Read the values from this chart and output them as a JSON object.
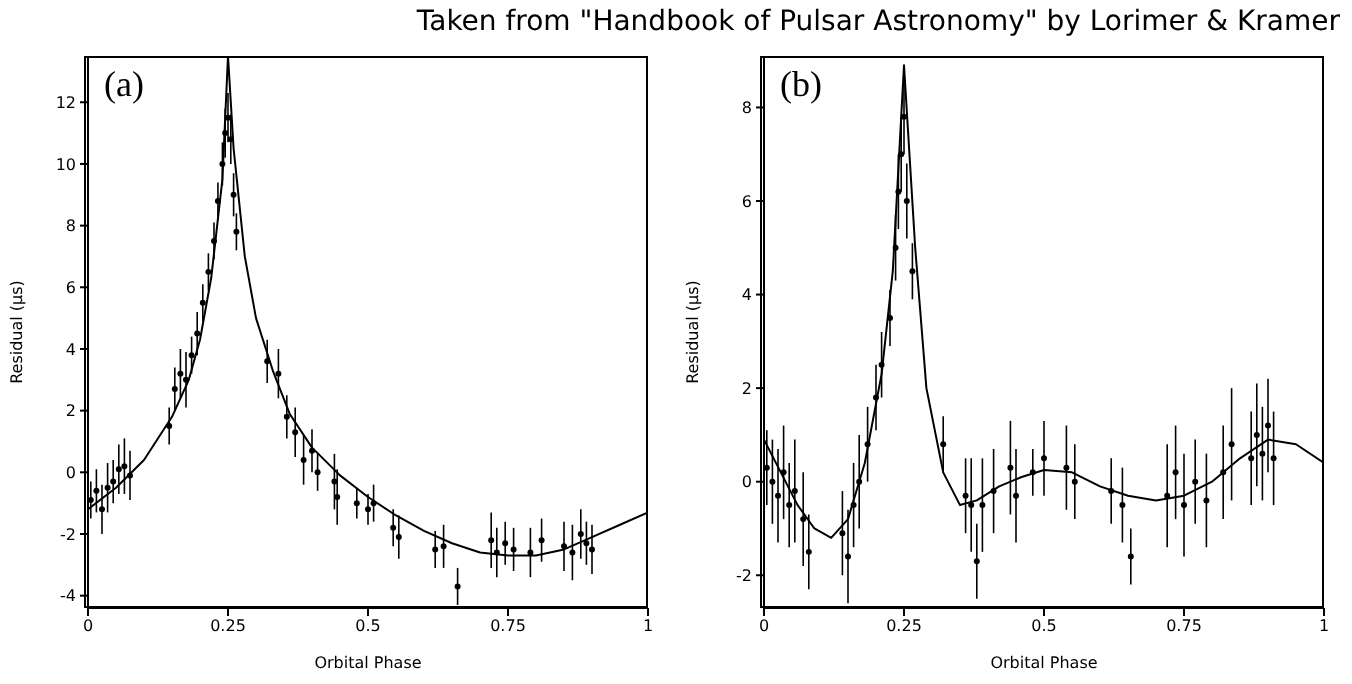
{
  "chart_data": [
    {
      "type": "scatter",
      "title": "(a)",
      "xlabel": "Orbital Phase",
      "ylabel": "Residual (μs)",
      "annotations": [
        "Taken from \"Handbook of Pulsar Astronomy\" by Lorimer & Kramer"
      ],
      "xlim": [
        0,
        1
      ],
      "xticks": [
        0,
        0.25,
        0.5,
        0.75,
        1
      ],
      "ylim": [
        -4.4,
        13.5
      ],
      "yticks": [
        -4,
        -2,
        0,
        2,
        4,
        6,
        8,
        10,
        12
      ],
      "grid": false,
      "marker": "circle",
      "series": [
        {
          "type": "scatter",
          "color": "#000000",
          "x": [
            0.005,
            0.015,
            0.025,
            0.035,
            0.045,
            0.055,
            0.065,
            0.075,
            0.145,
            0.155,
            0.165,
            0.175,
            0.185,
            0.195,
            0.205,
            0.215,
            0.225,
            0.232,
            0.24,
            0.245,
            0.25,
            0.255,
            0.26,
            0.265,
            0.32,
            0.34,
            0.355,
            0.37,
            0.385,
            0.4,
            0.41,
            0.44,
            0.445,
            0.48,
            0.5,
            0.51,
            0.545,
            0.555,
            0.62,
            0.635,
            0.66,
            0.72,
            0.73,
            0.745,
            0.76,
            0.79,
            0.81,
            0.85,
            0.865,
            0.88,
            0.89,
            0.9
          ],
          "values": [
            -0.9,
            -0.6,
            -1.2,
            -0.5,
            -0.3,
            0.1,
            0.2,
            -0.1,
            1.5,
            2.7,
            3.2,
            3.0,
            3.8,
            4.5,
            5.5,
            6.5,
            7.5,
            8.8,
            10.0,
            11.0,
            11.5,
            10.8,
            9.0,
            7.8,
            3.6,
            3.2,
            1.8,
            1.3,
            0.4,
            0.7,
            0.0,
            -0.3,
            -0.8,
            -1.0,
            -1.2,
            -1.0,
            -1.8,
            -2.1,
            -2.5,
            -2.4,
            -3.7,
            -2.2,
            -2.6,
            -2.3,
            -2.5,
            -2.6,
            -2.2,
            -2.4,
            -2.6,
            -2.0,
            -2.3,
            -2.5
          ],
          "errors": [
            0.6,
            0.7,
            0.8,
            0.8,
            0.7,
            0.8,
            0.9,
            0.8,
            0.6,
            0.7,
            0.8,
            0.9,
            0.6,
            0.7,
            0.6,
            0.6,
            0.6,
            0.6,
            0.7,
            0.8,
            0.8,
            0.8,
            0.7,
            0.6,
            0.7,
            0.8,
            0.7,
            0.8,
            0.8,
            0.7,
            0.6,
            0.9,
            0.9,
            0.5,
            0.5,
            0.6,
            0.6,
            0.7,
            0.6,
            0.7,
            0.6,
            0.9,
            0.8,
            0.7,
            0.7,
            0.8,
            0.7,
            0.8,
            0.9,
            0.8,
            0.7,
            0.8
          ]
        },
        {
          "type": "line",
          "color": "#000000",
          "marker": "none",
          "line_style": "solid",
          "x": [
            0,
            0.05,
            0.1,
            0.15,
            0.18,
            0.2,
            0.22,
            0.24,
            0.25,
            0.26,
            0.28,
            0.3,
            0.33,
            0.36,
            0.4,
            0.45,
            0.5,
            0.55,
            0.6,
            0.65,
            0.7,
            0.75,
            0.8,
            0.85,
            0.9,
            0.95,
            1
          ],
          "values": [
            -1.2,
            -0.5,
            0.4,
            1.8,
            3.0,
            4.3,
            6.3,
            9.5,
            13.5,
            10.5,
            7.0,
            5.0,
            3.3,
            1.9,
            0.8,
            -0.1,
            -0.8,
            -1.4,
            -1.9,
            -2.3,
            -2.6,
            -2.7,
            -2.7,
            -2.5,
            -2.1,
            -1.7,
            -1.3
          ]
        }
      ]
    },
    {
      "type": "scatter",
      "title": "(b)",
      "xlabel": "Orbital Phase",
      "ylabel": "Residual (μs)",
      "xlim": [
        0,
        1
      ],
      "xticks": [
        0,
        0.25,
        0.5,
        0.75,
        1
      ],
      "ylim": [
        -2.7,
        9.1
      ],
      "yticks": [
        -2,
        0,
        2,
        4,
        6,
        8
      ],
      "grid": false,
      "marker": "circle",
      "series": [
        {
          "type": "scatter",
          "color": "#000000",
          "x": [
            0.005,
            0.015,
            0.025,
            0.035,
            0.045,
            0.055,
            0.07,
            0.08,
            0.14,
            0.15,
            0.16,
            0.17,
            0.185,
            0.2,
            0.21,
            0.225,
            0.235,
            0.24,
            0.245,
            0.25,
            0.255,
            0.265,
            0.32,
            0.36,
            0.37,
            0.38,
            0.39,
            0.41,
            0.44,
            0.45,
            0.48,
            0.5,
            0.54,
            0.555,
            0.62,
            0.64,
            0.655,
            0.72,
            0.735,
            0.75,
            0.77,
            0.79,
            0.82,
            0.835,
            0.87,
            0.88,
            0.89,
            0.9,
            0.91
          ],
          "values": [
            0.3,
            0.0,
            -0.3,
            0.2,
            -0.5,
            -0.2,
            -0.8,
            -1.5,
            -1.1,
            -1.6,
            -0.5,
            0.0,
            0.8,
            1.8,
            2.5,
            3.5,
            5.0,
            6.2,
            7.0,
            7.8,
            6.0,
            4.5,
            0.8,
            -0.3,
            -0.5,
            -1.7,
            -0.5,
            -0.2,
            0.3,
            -0.3,
            0.2,
            0.5,
            0.3,
            0.0,
            -0.2,
            -0.5,
            -1.6,
            -0.3,
            0.2,
            -0.5,
            0.0,
            -0.4,
            0.2,
            0.8,
            0.5,
            1.0,
            0.6,
            1.2,
            0.5
          ],
          "errors": [
            0.8,
            0.9,
            1.0,
            1.0,
            0.9,
            1.1,
            1.0,
            0.8,
            0.9,
            1.0,
            0.9,
            1.0,
            0.8,
            0.7,
            0.7,
            0.6,
            0.7,
            0.8,
            0.8,
            0.8,
            0.8,
            0.6,
            0.6,
            0.8,
            1.0,
            0.8,
            1.0,
            0.9,
            1.0,
            1.0,
            0.5,
            0.8,
            0.9,
            0.8,
            0.7,
            0.8,
            0.6,
            1.1,
            1.0,
            1.1,
            0.9,
            1.0,
            1.0,
            1.2,
            1.0,
            1.1,
            1.0,
            1.0,
            1.0
          ]
        },
        {
          "type": "line",
          "color": "#000000",
          "marker": "none",
          "line_style": "solid",
          "x": [
            0,
            0.03,
            0.06,
            0.09,
            0.12,
            0.15,
            0.18,
            0.21,
            0.23,
            0.25,
            0.27,
            0.29,
            0.32,
            0.35,
            0.38,
            0.42,
            0.46,
            0.5,
            0.55,
            0.6,
            0.65,
            0.7,
            0.75,
            0.8,
            0.85,
            0.9,
            0.95,
            1
          ],
          "values": [
            0.9,
            0.2,
            -0.5,
            -1.0,
            -1.2,
            -0.8,
            0.4,
            2.3,
            4.5,
            8.9,
            5.0,
            2.0,
            0.2,
            -0.5,
            -0.4,
            -0.1,
            0.1,
            0.25,
            0.2,
            -0.1,
            -0.3,
            -0.4,
            -0.3,
            0.0,
            0.5,
            0.9,
            0.8,
            0.4
          ]
        }
      ]
    }
  ]
}
